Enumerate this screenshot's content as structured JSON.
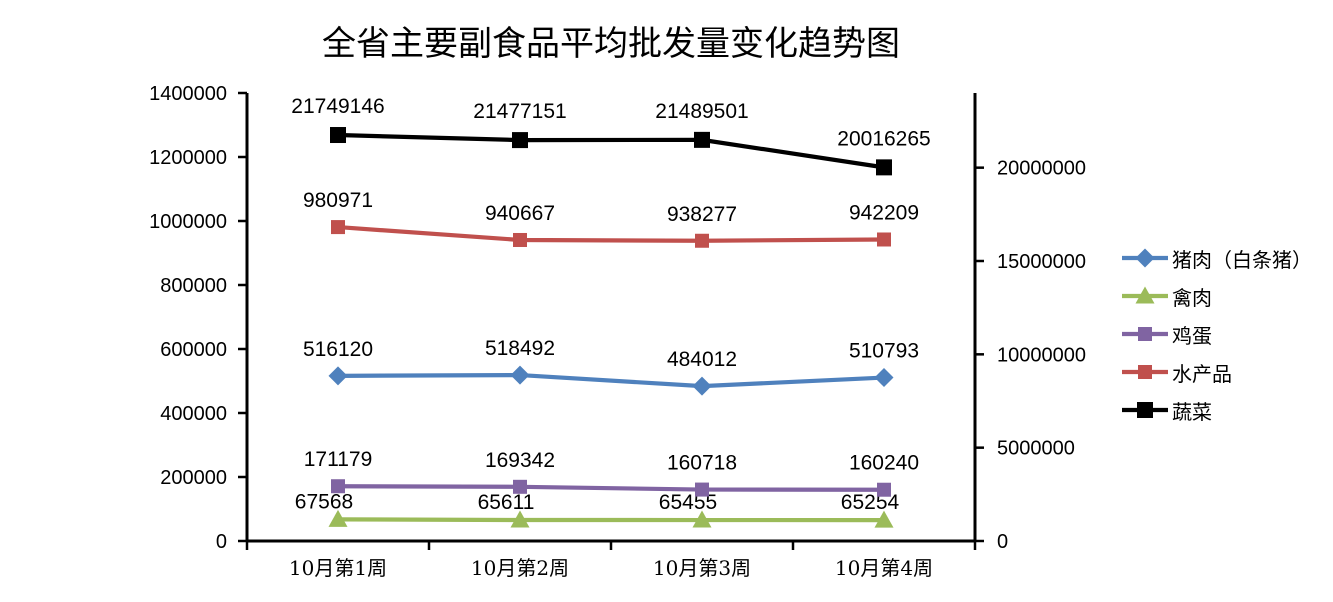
{
  "title": "全省主要副食品平均批发量变化趋势图",
  "chart_data": {
    "type": "line",
    "title": "全省主要副食品平均批发量变化趋势图",
    "categories": [
      "10月第1周",
      "10月第2周",
      "10月第3周",
      "10月第4周"
    ],
    "series": [
      {
        "name": "猪肉（白条猪）",
        "color": "#4F81BD",
        "marker": "diamond",
        "axis": "left",
        "values": [
          516120,
          518492,
          484012,
          510793
        ]
      },
      {
        "name": "禽肉",
        "color": "#9BBB59",
        "marker": "triangle",
        "axis": "left",
        "values": [
          67568,
          65611,
          65455,
          65254
        ]
      },
      {
        "name": "鸡蛋",
        "color": "#8064A2",
        "marker": "square",
        "axis": "left",
        "values": [
          171179,
          169342,
          160718,
          160240
        ]
      },
      {
        "name": "水产品",
        "color": "#C0504D",
        "marker": "square",
        "axis": "left",
        "values": [
          980971,
          940667,
          938277,
          942209
        ]
      },
      {
        "name": "蔬菜",
        "color": "#000000",
        "marker": "square",
        "axis": "right",
        "values": [
          21749146,
          21477151,
          21489501,
          20016265
        ]
      }
    ],
    "axes": {
      "left": {
        "min": 0,
        "max": 1400000,
        "tick_step": 200000,
        "ticks": [
          0,
          200000,
          400000,
          600000,
          800000,
          1000000,
          1200000,
          1400000
        ]
      },
      "right": {
        "min": 0,
        "max": 24000000,
        "tick_step": 5000000,
        "ticks": [
          0,
          5000000,
          10000000,
          15000000,
          20000000
        ]
      }
    },
    "legend_position": "right",
    "gridlines": false,
    "data_labels": true,
    "axis_color": "#000000"
  }
}
